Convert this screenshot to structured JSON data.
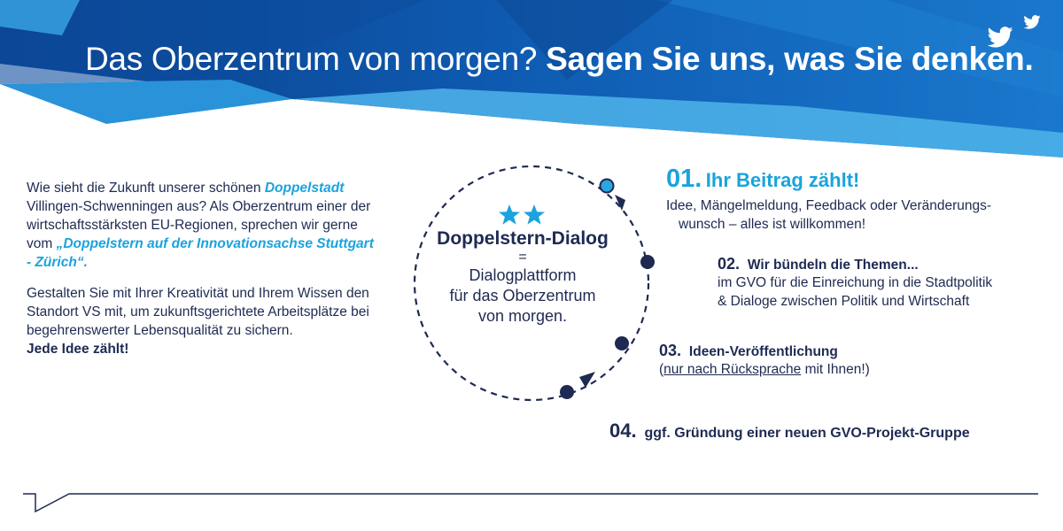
{
  "header": {
    "title_light": "Das Oberzentrum von morgen?",
    "title_bold": "Sagen Sie uns, was Sie denken.",
    "bg_dark": "#0b4fa0",
    "bg_mid": "#1565c0",
    "bg_light": "#3aa8e4",
    "icons": [
      "twitter-icon",
      "twitter-icon"
    ]
  },
  "intro": {
    "p1_a": "Wie sieht die Zukunft unserer schönen ",
    "p1_hl1": "Doppelstadt",
    "p1_b": " Villingen-Schwenningen aus? Als Oberzentrum einer der wirtschaftsstärksten EU-Regionen, sprechen wir gerne vom ",
    "p1_hl2": "„Doppelstern auf der Innovations­achse Stuttgart - Zürich“.",
    "p2": "Gestalten Sie mit Ihrer Kreativität und Ihrem Wissen den Standort VS mit, um zukunftsgerichtete Arbeits­plätze bei begehrenswerter Lebensqualität zu sichern.",
    "p2_bold": "Jede Idee zählt!"
  },
  "center": {
    "icon": "two-stars-icon",
    "title": "Doppelstern-Dialog",
    "equals": "=",
    "line1": "Dialogplattform",
    "line2": "für das Oberzentrum",
    "line3": "von morgen."
  },
  "steps": [
    {
      "num": "01.",
      "head": "Ihr Beitrag zählt!",
      "body1": "Idee, Mängelmeldung, Feedback oder Veränderungs-",
      "body2": "wunsch – alles ist willkommen!"
    },
    {
      "num": "02.",
      "head": "Wir bündeln die Themen...",
      "body1": "im GVO für die Einreichung in die Stadtpolitik",
      "body2": "& Dialoge zwischen Politik und Wirtschaft"
    },
    {
      "num": "03.",
      "head": "Ideen-Veröffentlichung",
      "body_pre": "(",
      "body_u1": "nur nach Rücksprache",
      "body_post": " mit Ihnen!)"
    },
    {
      "num": "04.",
      "head": "ggf. Gründung einer neuen GVO-Projekt-Gruppe"
    }
  ],
  "colors": {
    "navy": "#1e2a52",
    "cyan": "#1aa3de"
  }
}
